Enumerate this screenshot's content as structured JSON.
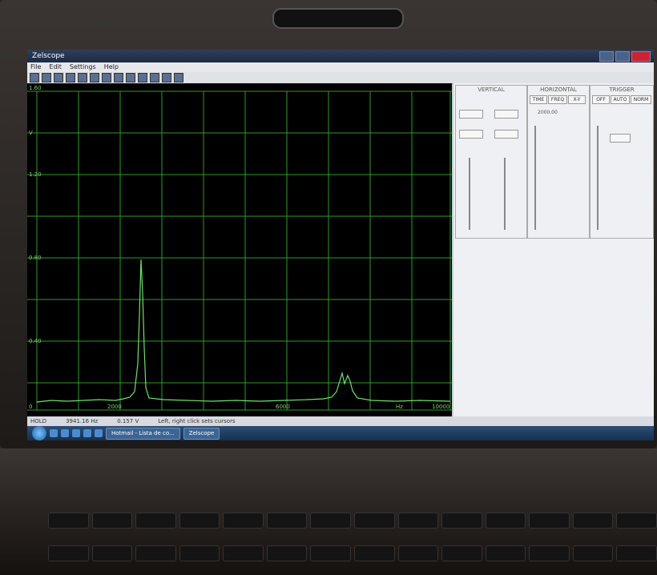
{
  "window": {
    "title": "Zelscope"
  },
  "menu": [
    "File",
    "Edit",
    "Settings",
    "Help"
  ],
  "plot": {
    "y_labels": [
      "1.60",
      "V",
      "1.20",
      "0.80",
      "0.40",
      "0"
    ],
    "x_labels": [
      "2000",
      "4000",
      "6000",
      "Hz",
      "10000"
    ],
    "grid_color": "#3bd23b",
    "trace_color": "#6fe06f"
  },
  "panel": {
    "vertical": {
      "title": "VERTICAL"
    },
    "horizontal": {
      "title": "HORIZONTAL",
      "tabs": [
        "TIME",
        "FREQ",
        "X-Y"
      ],
      "value": "2000.00"
    },
    "trigger": {
      "title": "TRIGGER",
      "modes": [
        "OFF",
        "AUTO",
        "NORM"
      ]
    }
  },
  "status": {
    "mode": "HOLD",
    "freq": "3941.16 Hz",
    "volts": "0.157 V",
    "hint": "Left, right click sets cursors"
  },
  "taskbar": {
    "items": [
      "Hotmail - Lista de co...",
      "Zelscope"
    ]
  }
}
